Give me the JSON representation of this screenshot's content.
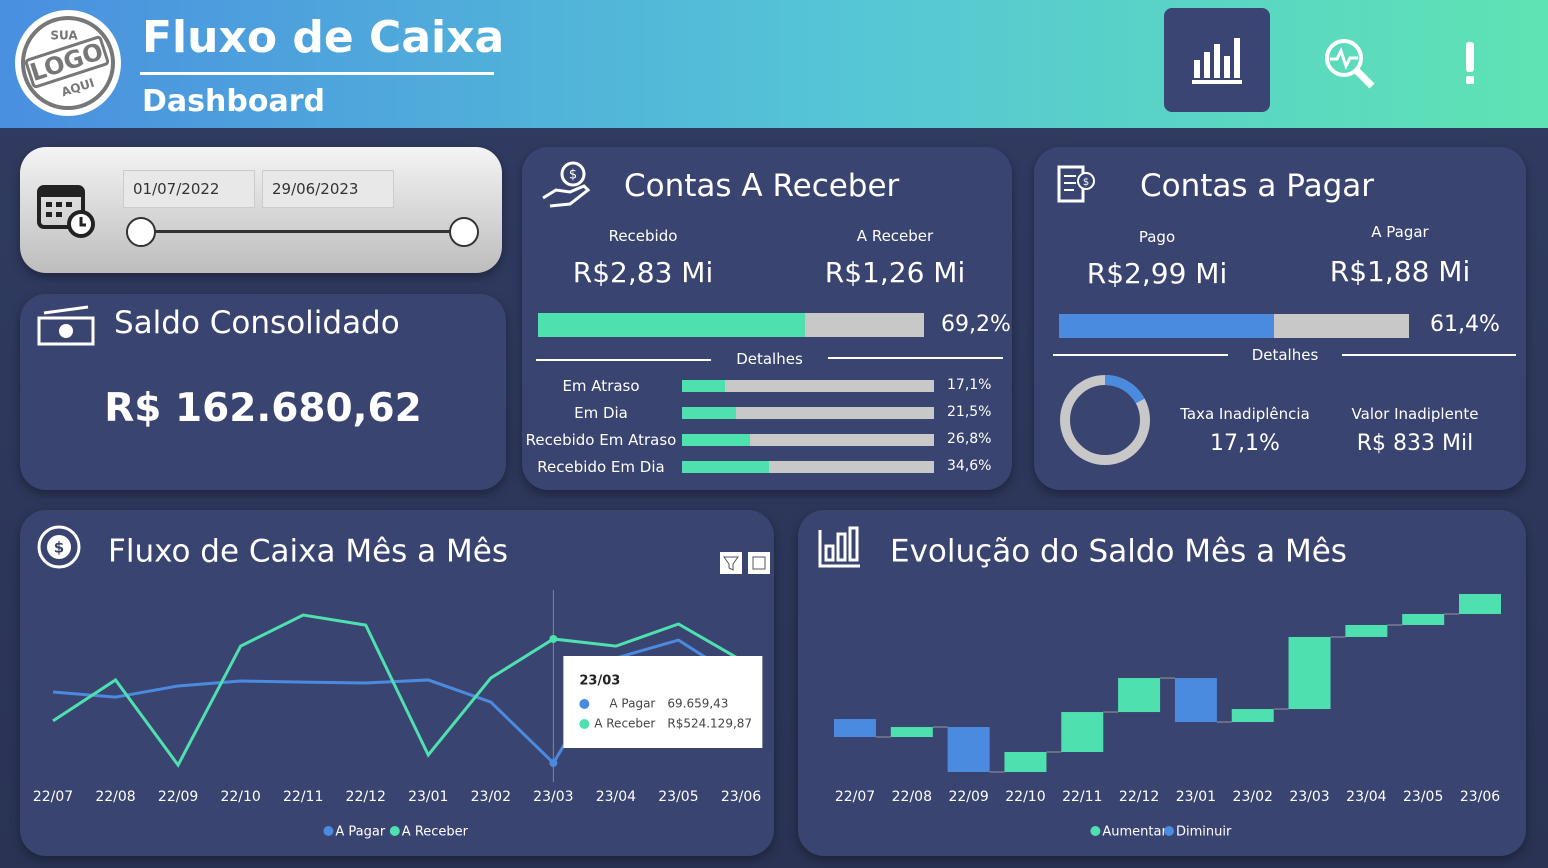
{
  "header": {
    "logo": [
      "SUA",
      "LOGO",
      "AQUI"
    ],
    "title": "Fluxo de Caixa",
    "subtitle": "Dashboard"
  },
  "date_filter": {
    "start": "01/07/2022",
    "end": "29/06/2023"
  },
  "saldo": {
    "title": "Saldo Consolidado",
    "value": "R$ 162.680,62"
  },
  "receber": {
    "title": "Contas A Receber",
    "kpis": [
      {
        "label": "Recebido",
        "value": "R$2,83 Mi"
      },
      {
        "label": "A Receber",
        "value": "R$1,26 Mi"
      }
    ],
    "progress": {
      "value": 69.2,
      "label": "69,2%"
    },
    "details_title": "Detalhes",
    "details": [
      {
        "name": "Em Atraso",
        "value": 17.1,
        "label": "17,1%"
      },
      {
        "name": "Em Dia",
        "value": 21.5,
        "label": "21,5%"
      },
      {
        "name": "Recebido Em Atraso",
        "value": 26.8,
        "label": "26,8%"
      },
      {
        "name": "Recebido Em Dia",
        "value": 34.6,
        "label": "34,6%"
      }
    ]
  },
  "pagar": {
    "title": "Contas a Pagar",
    "kpis": [
      {
        "label": "Pago",
        "value": "R$2,99 Mi"
      },
      {
        "label": "A Pagar",
        "value": "R$1,88 Mi"
      }
    ],
    "progress": {
      "value": 61.4,
      "label": "61,4%"
    },
    "details_title": "Detalhes",
    "rate": {
      "name": "Taxa Inadiplência",
      "value": 17.1,
      "label": "17,1%"
    },
    "amount": {
      "name": "Valor Inadiplente",
      "value": "R$ 833 Mil"
    }
  },
  "chart_data": [
    {
      "type": "line",
      "title": "Fluxo de Caixa Mês a Mês",
      "categories": [
        "22/07",
        "22/08",
        "22/09",
        "22/10",
        "22/11",
        "22/12",
        "23/01",
        "23/02",
        "23/03",
        "23/04",
        "23/05",
        "23/06"
      ],
      "series": [
        {
          "name": "A Pagar",
          "color": "#4a8be0",
          "values": [
            330000,
            311000,
            352000,
            370000,
            366000,
            363000,
            374000,
            293000,
            69659.43,
            454000,
            520000,
            374000
          ],
          "value_labels": [
            null,
            null,
            null,
            null,
            null,
            null,
            null,
            null,
            "69.659,43",
            null,
            null,
            null
          ]
        },
        {
          "name": "A Receber",
          "color": "#4fe0b0",
          "values": [
            224000,
            374000,
            62000,
            498000,
            612000,
            575000,
            99000,
            381000,
            524129.87,
            498000,
            579000,
            447000
          ],
          "value_labels": [
            null,
            null,
            null,
            null,
            null,
            null,
            null,
            null,
            "R$524.129,87",
            null,
            null,
            null
          ]
        }
      ],
      "legend": "bottom"
    },
    {
      "type": "waterfall",
      "title": "Evolução do Saldo Mês a Mês",
      "categories": [
        "22/07",
        "22/08",
        "22/09",
        "22/10",
        "22/11",
        "22/12",
        "23/01",
        "23/02",
        "23/03",
        "23/04",
        "23/05",
        "23/06"
      ],
      "values": [
        -23400,
        13000,
        -58500,
        26000,
        52000,
        44200,
        -57200,
        16900,
        93700,
        15600,
        14300,
        26000
      ],
      "legend_entries": [
        {
          "name": "Aumentar",
          "color": "#4fe0b0"
        },
        {
          "name": "Diminuir",
          "color": "#4a8be0"
        }
      ],
      "legend": "bottom"
    }
  ]
}
